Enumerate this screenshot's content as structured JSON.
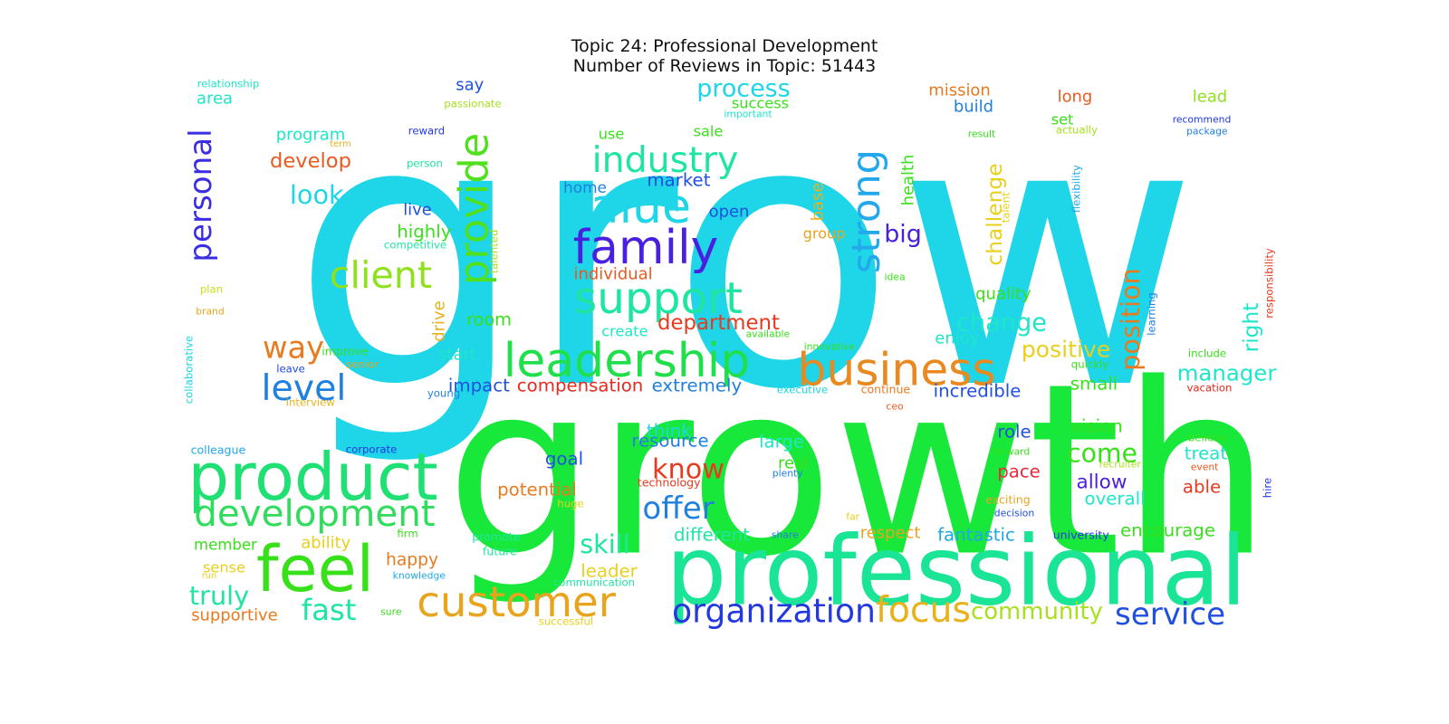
{
  "title": "Topic 24: Professional Development",
  "subtitle": "Number of Reviews in Topic: 51443",
  "words": [
    {
      "text": "grow",
      "color": "#1fd5e8"
    },
    {
      "text": "growth",
      "color": "#18e83a"
    },
    {
      "text": "professional",
      "color": "#1ae496"
    },
    {
      "text": "product",
      "color": "#1fe072"
    },
    {
      "text": "feel",
      "color": "#38e01a"
    },
    {
      "text": "customer",
      "color": "#e8a41d"
    },
    {
      "text": "leadership",
      "color": "#1fe04a"
    },
    {
      "text": "business",
      "color": "#e88a1f"
    },
    {
      "text": "development",
      "color": "#2fdc5c"
    },
    {
      "text": "family",
      "color": "#4a20e0"
    },
    {
      "text": "support",
      "color": "#1ee6a0"
    },
    {
      "text": "value",
      "color": "#1fd5e8"
    },
    {
      "text": "provide",
      "color": "#50e01e"
    },
    {
      "text": "industry",
      "color": "#1ee6a0"
    },
    {
      "text": "strong",
      "color": "#23a8ec"
    },
    {
      "text": "client",
      "color": "#90e01e"
    },
    {
      "text": "personal",
      "color": "#3a2ee0"
    },
    {
      "text": "position",
      "color": "#e87a1f"
    },
    {
      "text": "organization",
      "color": "#2438e0"
    },
    {
      "text": "focus",
      "color": "#e8b21d"
    },
    {
      "text": "service",
      "color": "#2050e0"
    },
    {
      "text": "fast",
      "color": "#1ee6a0"
    },
    {
      "text": "community",
      "color": "#a8e01e"
    },
    {
      "text": "level",
      "color": "#2080e0"
    },
    {
      "text": "way",
      "color": "#e87a1f"
    },
    {
      "text": "offer",
      "color": "#2080e0"
    },
    {
      "text": "know",
      "color": "#e83a1f"
    },
    {
      "text": "come",
      "color": "#38e01a"
    },
    {
      "text": "truly",
      "color": "#1ee6a0"
    },
    {
      "text": "skill",
      "color": "#1ee6a0"
    },
    {
      "text": "look",
      "color": "#1fd5e8"
    },
    {
      "text": "process",
      "color": "#1fd5e8"
    },
    {
      "text": "change",
      "color": "#1ee6c8"
    },
    {
      "text": "challenge",
      "color": "#e8d01d"
    },
    {
      "text": "right",
      "color": "#1ee6c8"
    },
    {
      "text": "manager",
      "color": "#1ee6c8"
    },
    {
      "text": "positive",
      "color": "#e8d01d"
    },
    {
      "text": "department",
      "color": "#e83a1f"
    },
    {
      "text": "big",
      "color": "#4a20e0"
    },
    {
      "text": "develop",
      "color": "#e85a1f"
    },
    {
      "text": "market",
      "color": "#2050e0"
    },
    {
      "text": "highly",
      "color": "#38e01a"
    },
    {
      "text": "room",
      "color": "#38e01a"
    },
    {
      "text": "compensation",
      "color": "#e82a1f"
    },
    {
      "text": "extremely",
      "color": "#2080e0"
    },
    {
      "text": "impact",
      "color": "#2050e0"
    },
    {
      "text": "incredible",
      "color": "#2050e0"
    },
    {
      "text": "small",
      "color": "#38e01a"
    },
    {
      "text": "role",
      "color": "#2050e0"
    },
    {
      "text": "vision",
      "color": "#38e01a"
    },
    {
      "text": "treat",
      "color": "#1ee6c8"
    },
    {
      "text": "allow",
      "color": "#4a20e0"
    },
    {
      "text": "able",
      "color": "#e83a1f"
    },
    {
      "text": "overall",
      "color": "#1ee6c8"
    },
    {
      "text": "pace",
      "color": "#e82a3a"
    },
    {
      "text": "potential",
      "color": "#e87a1f"
    },
    {
      "text": "goal",
      "color": "#2050e0"
    },
    {
      "text": "resource",
      "color": "#2080e0"
    },
    {
      "text": "large",
      "color": "#1ee6c8"
    },
    {
      "text": "real",
      "color": "#38e01a"
    },
    {
      "text": "think",
      "color": "#1fd5e8"
    },
    {
      "text": "different",
      "color": "#1ee6a0"
    },
    {
      "text": "respect",
      "color": "#e8a41d"
    },
    {
      "text": "fantastic",
      "color": "#1fa8e8"
    },
    {
      "text": "encourage",
      "color": "#38e01a"
    },
    {
      "text": "member",
      "color": "#38e01a"
    },
    {
      "text": "ability",
      "color": "#e8d01d"
    },
    {
      "text": "sense",
      "color": "#e8d01d"
    },
    {
      "text": "supportive",
      "color": "#e87a1f"
    },
    {
      "text": "happy",
      "color": "#e87a1f"
    },
    {
      "text": "leader",
      "color": "#e8d01d"
    },
    {
      "text": "drive",
      "color": "#e8b21d"
    },
    {
      "text": "start",
      "color": "#1ee6c8"
    },
    {
      "text": "enjoy",
      "color": "#1ee6c8"
    },
    {
      "text": "quality",
      "color": "#38e01a"
    },
    {
      "text": "health",
      "color": "#38e01a"
    },
    {
      "text": "base",
      "color": "#e8b21d"
    },
    {
      "text": "group",
      "color": "#e8a41d"
    },
    {
      "text": "open",
      "color": "#2050e0"
    },
    {
      "text": "home",
      "color": "#2080e0"
    },
    {
      "text": "create",
      "color": "#1ee6c8"
    },
    {
      "text": "individual",
      "color": "#e85a1f"
    },
    {
      "text": "live",
      "color": "#2050e0"
    },
    {
      "text": "program",
      "color": "#1ee6c8"
    },
    {
      "text": "area",
      "color": "#1ee6c8"
    },
    {
      "text": "say",
      "color": "#2050e0"
    },
    {
      "text": "mission",
      "color": "#e87a1f"
    },
    {
      "text": "long",
      "color": "#e85a1f"
    },
    {
      "text": "build",
      "color": "#2080e0"
    },
    {
      "text": "success",
      "color": "#38e01a"
    },
    {
      "text": "set",
      "color": "#38e01a"
    },
    {
      "text": "lead",
      "color": "#90e01e"
    },
    {
      "text": "use",
      "color": "#38e01a"
    },
    {
      "text": "sale",
      "color": "#38e01a"
    },
    {
      "text": "relationship",
      "color": "#1ee6c8"
    },
    {
      "text": "passionate",
      "color": "#a8e01e"
    },
    {
      "text": "reward",
      "color": "#2438e0"
    },
    {
      "text": "term",
      "color": "#e8b21d"
    },
    {
      "text": "person",
      "color": "#1ee6a0"
    },
    {
      "text": "competitive",
      "color": "#1ee6a0"
    },
    {
      "text": "plan",
      "color": "#c8e01e"
    },
    {
      "text": "brand",
      "color": "#e8a41d"
    },
    {
      "text": "collaborative",
      "color": "#1fd5e8"
    },
    {
      "text": "improve",
      "color": "#38e01a"
    },
    {
      "text": "senior",
      "color": "#e8a41d"
    },
    {
      "text": "leave",
      "color": "#2050e0"
    },
    {
      "text": "interview",
      "color": "#e8b21d"
    },
    {
      "text": "young",
      "color": "#2080e0"
    },
    {
      "text": "talented",
      "color": "#a8e01e"
    },
    {
      "text": "available",
      "color": "#38e01a"
    },
    {
      "text": "innovative",
      "color": "#38e01a"
    },
    {
      "text": "executive",
      "color": "#1fd5e8"
    },
    {
      "text": "continue",
      "color": "#e87a1f"
    },
    {
      "text": "ceo",
      "color": "#e85a1f"
    },
    {
      "text": "important",
      "color": "#1ee6c8"
    },
    {
      "text": "result",
      "color": "#38e01a"
    },
    {
      "text": "actually",
      "color": "#a8e01e"
    },
    {
      "text": "recommend",
      "color": "#2438e0"
    },
    {
      "text": "package",
      "color": "#2080e0"
    },
    {
      "text": "idea",
      "color": "#38e01a"
    },
    {
      "text": "talent",
      "color": "#e8d01d"
    },
    {
      "text": "flexibility",
      "color": "#1fa8e8"
    },
    {
      "text": "learning",
      "color": "#2080e0"
    },
    {
      "text": "responsibility",
      "color": "#e83a1f"
    },
    {
      "text": "include",
      "color": "#38e01a"
    },
    {
      "text": "quickly",
      "color": "#38e01a"
    },
    {
      "text": "vacation",
      "color": "#e82a1f"
    },
    {
      "text": "believe",
      "color": "#38e01a"
    },
    {
      "text": "event",
      "color": "#e85a1f"
    },
    {
      "text": "hire",
      "color": "#2438e0"
    },
    {
      "text": "forward",
      "color": "#38e01a"
    },
    {
      "text": "recruiter",
      "color": "#a8e01e"
    },
    {
      "text": "exciting",
      "color": "#e8a41d"
    },
    {
      "text": "decision",
      "color": "#2050e0"
    },
    {
      "text": "university",
      "color": "#2438e0"
    },
    {
      "text": "far",
      "color": "#e8d01d"
    },
    {
      "text": "share",
      "color": "#2080e0"
    },
    {
      "text": "plenty",
      "color": "#2080e0"
    },
    {
      "text": "technology",
      "color": "#e83a1f"
    },
    {
      "text": "huge",
      "color": "#e8d01d"
    },
    {
      "text": "colleague",
      "color": "#1fa8e8"
    },
    {
      "text": "corporate",
      "color": "#2438e0"
    },
    {
      "text": "firm",
      "color": "#38e01a"
    },
    {
      "text": "promote",
      "color": "#1ee6a0"
    },
    {
      "text": "future",
      "color": "#1ee6a0"
    },
    {
      "text": "knowledge",
      "color": "#1fa8e8"
    },
    {
      "text": "communication",
      "color": "#1ee6a0"
    },
    {
      "text": "run",
      "color": "#e8d01d"
    },
    {
      "text": "sure",
      "color": "#38e01a"
    },
    {
      "text": "successful",
      "color": "#e8d01d"
    }
  ]
}
